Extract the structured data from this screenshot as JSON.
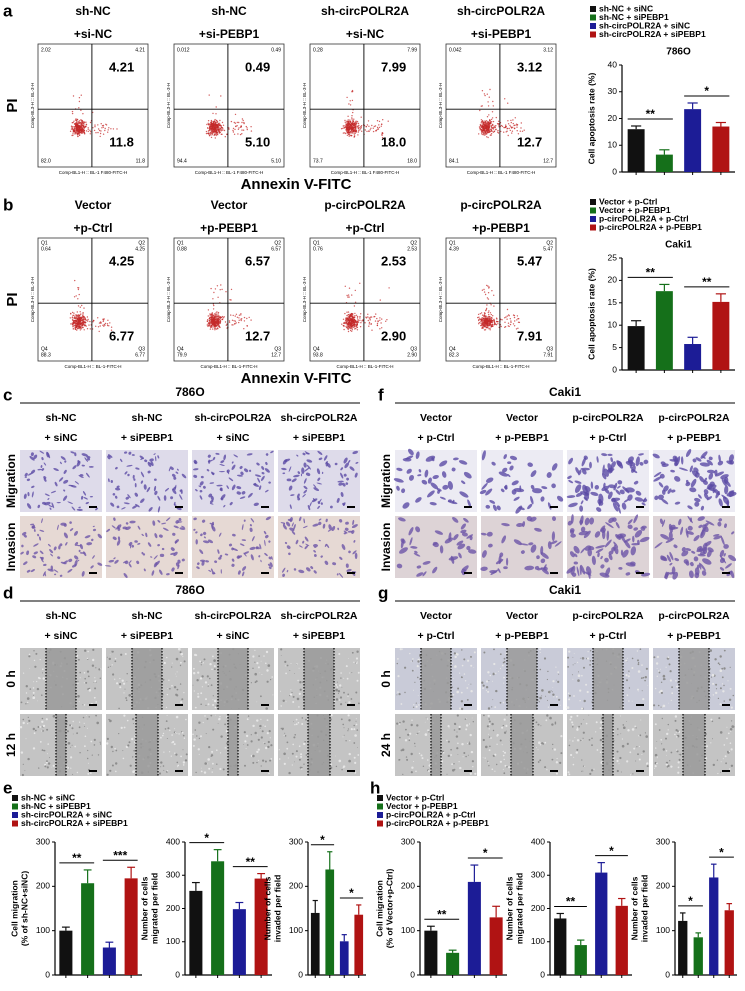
{
  "figure": {
    "a": {
      "label": "a",
      "x_title": "Annexin V-FITC",
      "y_title": "PI",
      "plot_x_axis": "Comp-BL1-H :: BL-1 F480-FITC-H",
      "plot_y_axis": "Comp-BL3-H :: BL-3-H",
      "columns": [
        {
          "header": [
            "sh-NC",
            "+si-NC"
          ],
          "ul": "2.02",
          "ur": "4.21",
          "ll": "82.0",
          "lr": "11.8"
        },
        {
          "header": [
            "sh-NC",
            "+si-PEBP1"
          ],
          "ul": "0.012",
          "ur": "0.49",
          "ll": "94.4",
          "lr": "5.10"
        },
        {
          "header": [
            "sh-circPOLR2A",
            "+si-NC"
          ],
          "ul": "0.28",
          "ur": "7.99",
          "ll": "73.7",
          "lr": "18.0"
        },
        {
          "header": [
            "sh-circPOLR2A",
            "+si-PEBP1"
          ],
          "ul": "0.042",
          "ur": "3.12",
          "ll": "84.1",
          "lr": "12.7"
        }
      ]
    },
    "b": {
      "label": "b",
      "x_title": "Annexin V-FITC",
      "y_title": "PI",
      "plot_x_axis": "Comp-BL1-H :: BL-1-FITC-H",
      "plot_y_axis": "Comp-BL3-H :: BL-3-H",
      "quadrant_names": {
        "ul": "Q1",
        "ur": "Q2",
        "ll": "Q4",
        "lr": "Q3"
      },
      "columns": [
        {
          "header": [
            "Vector",
            "+p-Ctrl"
          ],
          "ul": "0.64",
          "ur": "4.25",
          "ll": "88.3",
          "lr": "6.77"
        },
        {
          "header": [
            "Vector",
            "+p-PEBP1"
          ],
          "ul": "0.88",
          "ur": "6.57",
          "ll": "79.9",
          "lr": "12.7"
        },
        {
          "header": [
            "p-circPOLR2A",
            "+p-Ctrl"
          ],
          "ul": "0.76",
          "ur": "2.53",
          "ll": "93.8",
          "lr": "2.90"
        },
        {
          "header": [
            "p-circPOLR2A",
            "+p-PEBP1"
          ],
          "ul": "4.39",
          "ur": "5.47",
          "ll": "82.3",
          "lr": "7.91"
        }
      ]
    },
    "c": {
      "label": "c",
      "title": "786O",
      "rows": [
        "Migration",
        "Invasion"
      ],
      "columns": [
        [
          "sh-NC",
          "+ siNC"
        ],
        [
          "sh-NC",
          "+ siPEBP1"
        ],
        [
          "sh-circPOLR2A",
          "+ siNC"
        ],
        [
          "sh-circPOLR2A",
          "+ siPEBP1"
        ]
      ]
    },
    "f": {
      "label": "f",
      "title": "Caki1",
      "rows": [
        "Migration",
        "Invasion"
      ],
      "columns": [
        [
          "Vector",
          "+ p-Ctrl"
        ],
        [
          "Vector",
          "+ p-PEBP1"
        ],
        [
          "p-circPOLR2A",
          "+ p-Ctrl"
        ],
        [
          "p-circPOLR2A",
          "+ p-PEBP1"
        ]
      ]
    },
    "d": {
      "label": "d",
      "title": "786O",
      "rows": [
        "0 h",
        "12 h"
      ],
      "columns": [
        [
          "sh-NC",
          "+ siNC"
        ],
        [
          "sh-NC",
          "+ siPEBP1"
        ],
        [
          "sh-circPOLR2A",
          "+ siNC"
        ],
        [
          "sh-circPOLR2A",
          "+ siPEBP1"
        ]
      ]
    },
    "g": {
      "label": "g",
      "title": "Caki1",
      "rows": [
        "0 h",
        "24 h"
      ],
      "columns": [
        [
          "Vector",
          "+ p-Ctrl"
        ],
        [
          "Vector",
          "+ p-PEBP1"
        ],
        [
          "p-circPOLR2A",
          "+ p-Ctrl"
        ],
        [
          "p-circPOLR2A",
          "+ p-PEBP1"
        ]
      ]
    },
    "e": {
      "label": "e"
    },
    "h": {
      "label": "h"
    }
  },
  "chart_data": [
    {
      "type": "bar",
      "title": "786O",
      "y_title": [
        "Cell apoptosis rate (%)"
      ],
      "categories": [
        "sh-NC + siNC",
        "sh-NC + siPEBP1",
        "sh-circPOLR2A + siNC",
        "sh-circPOLR2A + siPEBP1"
      ],
      "values": [
        16,
        6.5,
        23.5,
        17
      ],
      "errors": [
        1.2,
        1.8,
        2.3,
        1.5
      ],
      "colors": [
        "#111111",
        "#15701a",
        "#1c1c96",
        "#b01313"
      ],
      "significance": [
        "**",
        "*"
      ],
      "ylim": [
        0,
        40
      ],
      "yticks": [
        0,
        10,
        20,
        30,
        40
      ]
    },
    {
      "type": "bar",
      "title": "Caki1",
      "y_title": [
        "Cell apoptosis rate (%)"
      ],
      "categories": [
        "Vector + p-Ctrl",
        "Vector + p-PEBP1",
        "p-circPOLR2A + p-Ctrl",
        "p-circPOLR2A + p-PEBP1"
      ],
      "values": [
        9.8,
        17.6,
        5.8,
        15.2
      ],
      "errors": [
        1.2,
        1.5,
        1.5,
        1.8
      ],
      "colors": [
        "#111111",
        "#15701a",
        "#1c1c96",
        "#b01313"
      ],
      "significance": [
        "**",
        "**"
      ],
      "ylim": [
        0,
        25
      ],
      "yticks": [
        0,
        5,
        10,
        15,
        20,
        25
      ]
    },
    {
      "type": "bar",
      "y_title": [
        "Cell migration",
        "(% of sh-NC+siNC)"
      ],
      "categories": [
        "sh-NC + siNC",
        "sh-NC + siPEBP1",
        "sh-circPOLR2A + siNC",
        "sh-circPOLR2A + siPEBP1"
      ],
      "values": [
        100,
        207,
        62,
        218
      ],
      "errors": [
        8,
        30,
        12,
        25
      ],
      "colors": [
        "#111111",
        "#15701a",
        "#1c1c96",
        "#b01313"
      ],
      "significance": [
        "**",
        "***"
      ],
      "ylim": [
        0,
        300
      ],
      "yticks": [
        0,
        100,
        200,
        300
      ]
    },
    {
      "type": "bar",
      "y_title": [
        "Number of cells",
        "migrated per field"
      ],
      "values": [
        253,
        342,
        198,
        290
      ],
      "errors": [
        25,
        35,
        20,
        15
      ],
      "colors": [
        "#111111",
        "#15701a",
        "#1c1c96",
        "#b01313"
      ],
      "significance": [
        "*",
        "**"
      ],
      "ylim": [
        0,
        400
      ],
      "yticks": [
        0,
        100,
        200,
        300,
        400
      ]
    },
    {
      "type": "bar",
      "y_title": [
        "Number of cells",
        "invaded per field"
      ],
      "values": [
        140,
        238,
        76,
        136
      ],
      "errors": [
        28,
        40,
        15,
        22
      ],
      "colors": [
        "#111111",
        "#15701a",
        "#1c1c96",
        "#b01313"
      ],
      "significance": [
        "*",
        "*"
      ],
      "ylim": [
        0,
        300
      ],
      "yticks": [
        0,
        100,
        200,
        300
      ]
    },
    {
      "type": "bar",
      "y_title": [
        "Cell migration",
        "(% of Vector+p-Ctrl)"
      ],
      "categories": [
        "Vector + p-Ctrl",
        "Vector + p-PEBP1",
        "p-circPOLR2A + p-Ctrl",
        "p-circPOLR2A + p-PEBP1"
      ],
      "values": [
        100,
        50,
        210,
        130
      ],
      "errors": [
        10,
        6,
        38,
        25
      ],
      "colors": [
        "#111111",
        "#15701a",
        "#1c1c96",
        "#b01313"
      ],
      "significance": [
        "**",
        "*"
      ],
      "ylim": [
        0,
        300
      ],
      "yticks": [
        0,
        100,
        200,
        300
      ]
    },
    {
      "type": "bar",
      "y_title": [
        "Number of cells",
        "migrated per field"
      ],
      "values": [
        170,
        90,
        308,
        208
      ],
      "errors": [
        15,
        15,
        30,
        22
      ],
      "colors": [
        "#111111",
        "#15701a",
        "#1c1c96",
        "#b01313"
      ],
      "significance": [
        "**",
        "*"
      ],
      "ylim": [
        0,
        400
      ],
      "yticks": [
        0,
        100,
        200,
        300,
        400
      ]
    },
    {
      "type": "bar",
      "y_title": [
        "Number of cells",
        "invaded per field"
      ],
      "values": [
        122,
        85,
        220,
        146
      ],
      "errors": [
        18,
        10,
        30,
        15
      ],
      "colors": [
        "#111111",
        "#15701a",
        "#1c1c96",
        "#b01313"
      ],
      "significance": [
        "*",
        "*"
      ],
      "ylim": [
        0,
        300
      ],
      "yticks": [
        0,
        100,
        200,
        300
      ]
    }
  ]
}
